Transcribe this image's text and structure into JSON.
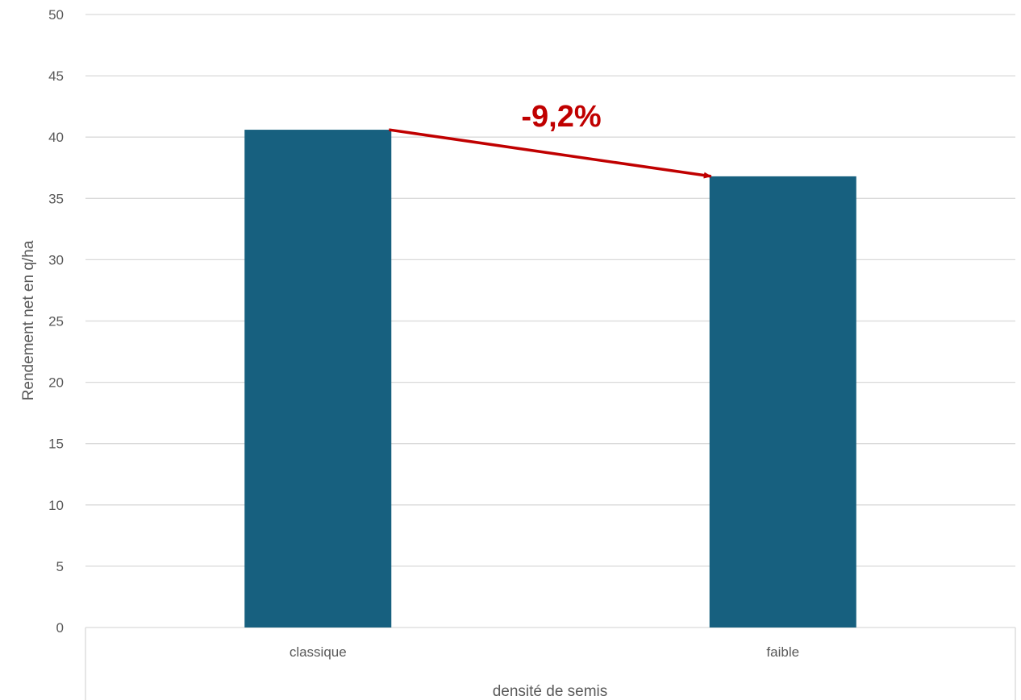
{
  "chart_data": {
    "type": "bar",
    "categories": [
      "classique",
      "faible"
    ],
    "values": [
      40.6,
      36.8
    ],
    "xlabel": "densité de semis",
    "ylabel": "Rendement net en q/ha",
    "ylim": [
      0,
      50
    ],
    "yticks": [
      0,
      5,
      10,
      15,
      20,
      25,
      30,
      35,
      40,
      45,
      50
    ],
    "grid": true,
    "legend": "none",
    "annotation": {
      "text": "-9,2%",
      "from": "classique",
      "to": "faible"
    },
    "colors": {
      "bar": "#17607f",
      "annotation": "#c00000",
      "grid": "#d9d9d9"
    }
  }
}
